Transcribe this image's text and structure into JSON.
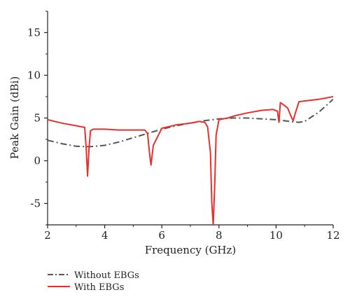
{
  "chart_data": {
    "type": "line",
    "title": "",
    "xlabel": "Frequency (GHz)",
    "ylabel": "Peak Gain (dBi)",
    "xlim": [
      2,
      12
    ],
    "ylim": [
      -7.5,
      17.5
    ],
    "xticks": [
      2,
      4,
      6,
      8,
      10,
      12
    ],
    "yticks": [
      -5,
      0,
      5,
      10,
      15
    ],
    "grid": false,
    "legend": "bottom-left, below plot",
    "series": [
      {
        "name": "Without EBGs",
        "color": "#555555",
        "style": "dash-dot",
        "x": [
          2.0,
          2.5,
          3.0,
          3.5,
          4.0,
          4.5,
          5.0,
          5.5,
          6.0,
          6.5,
          7.0,
          7.5,
          8.0,
          8.5,
          9.0,
          9.5,
          10.0,
          10.5,
          10.8,
          11.0,
          11.5,
          12.0
        ],
        "y": [
          2.4,
          2.0,
          1.7,
          1.65,
          1.8,
          2.2,
          2.7,
          3.2,
          3.7,
          4.1,
          4.4,
          4.7,
          4.9,
          5.0,
          5.0,
          4.9,
          4.8,
          4.6,
          4.5,
          4.6,
          5.7,
          7.2
        ]
      },
      {
        "name": "With EBGs",
        "color": "#e8302c",
        "style": "solid",
        "x": [
          2.0,
          2.5,
          3.0,
          3.3,
          3.35,
          3.4,
          3.45,
          3.5,
          3.6,
          4.0,
          4.5,
          5.0,
          5.4,
          5.5,
          5.58,
          5.62,
          5.7,
          6.0,
          6.5,
          7.0,
          7.3,
          7.5,
          7.6,
          7.7,
          7.75,
          7.8,
          7.85,
          7.9,
          8.0,
          8.3,
          8.6,
          9.0,
          9.5,
          9.9,
          10.05,
          10.1,
          10.15,
          10.2,
          10.4,
          10.55,
          10.6,
          10.65,
          10.8,
          11.0,
          11.5,
          12.0
        ],
        "y": [
          4.8,
          4.4,
          4.1,
          3.9,
          1.5,
          -1.8,
          1.5,
          3.5,
          3.7,
          3.7,
          3.6,
          3.6,
          3.6,
          3.2,
          0.5,
          -0.5,
          1.8,
          3.8,
          4.2,
          4.4,
          4.6,
          4.5,
          4.0,
          1.0,
          -5.0,
          -7.5,
          -3.0,
          3.0,
          4.8,
          5.0,
          5.3,
          5.6,
          5.9,
          6.0,
          5.8,
          4.5,
          6.8,
          6.7,
          6.2,
          5.0,
          4.7,
          5.3,
          6.9,
          7.0,
          7.2,
          7.5
        ]
      }
    ]
  }
}
